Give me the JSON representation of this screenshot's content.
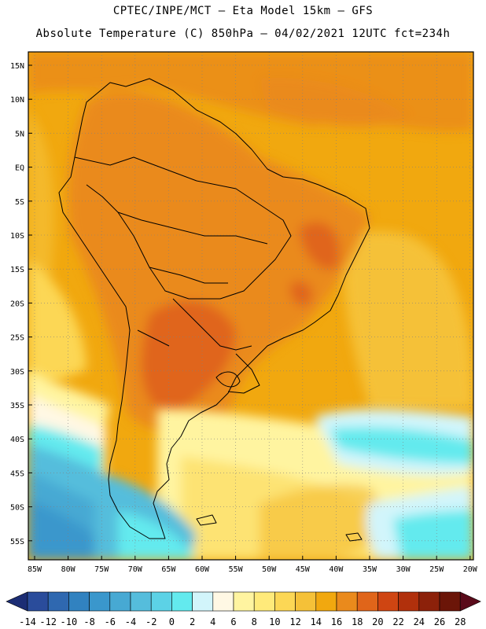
{
  "header": {
    "line1": "CPTEC/INPE/MCT –  Eta Model 15km – GFS",
    "line2": "Absolute Temperature (C) 850hPa – 04/02/2021 12UTC fct=234h"
  },
  "map": {
    "lat_labels": [
      "15N",
      "10N",
      "5N",
      "EQ",
      "5S",
      "10S",
      "15S",
      "20S",
      "25S",
      "30S",
      "35S",
      "40S",
      "45S",
      "50S",
      "55S"
    ],
    "lon_labels": [
      "85W",
      "80W",
      "75W",
      "70W",
      "65W",
      "60W",
      "55W",
      "50W",
      "45W",
      "40W",
      "35W",
      "30W",
      "25W",
      "20W"
    ]
  },
  "colorbar": {
    "ticks": [
      "-14",
      "-12",
      "-10",
      "-8",
      "-6",
      "-4",
      "-2",
      "0",
      "2",
      "4",
      "6",
      "8",
      "10",
      "12",
      "14",
      "16",
      "18",
      "20",
      "22",
      "24",
      "26",
      "28"
    ],
    "colors": [
      "#2a4c9b",
      "#2f68b0",
      "#3182c0",
      "#3a97cc",
      "#47a9d3",
      "#55bddc",
      "#5cd2e6",
      "#63eaee",
      "#d2f5fb",
      "#fff8e4",
      "#fff4a0",
      "#ffea7a",
      "#fcd755",
      "#f5c138",
      "#f1a80f",
      "#ea8a1c",
      "#e0651a",
      "#cf4512",
      "#b1300c",
      "#8c210a",
      "#6b1508"
    ],
    "low_color": "#1c2d74",
    "high_color": "#5a0a1a"
  }
}
